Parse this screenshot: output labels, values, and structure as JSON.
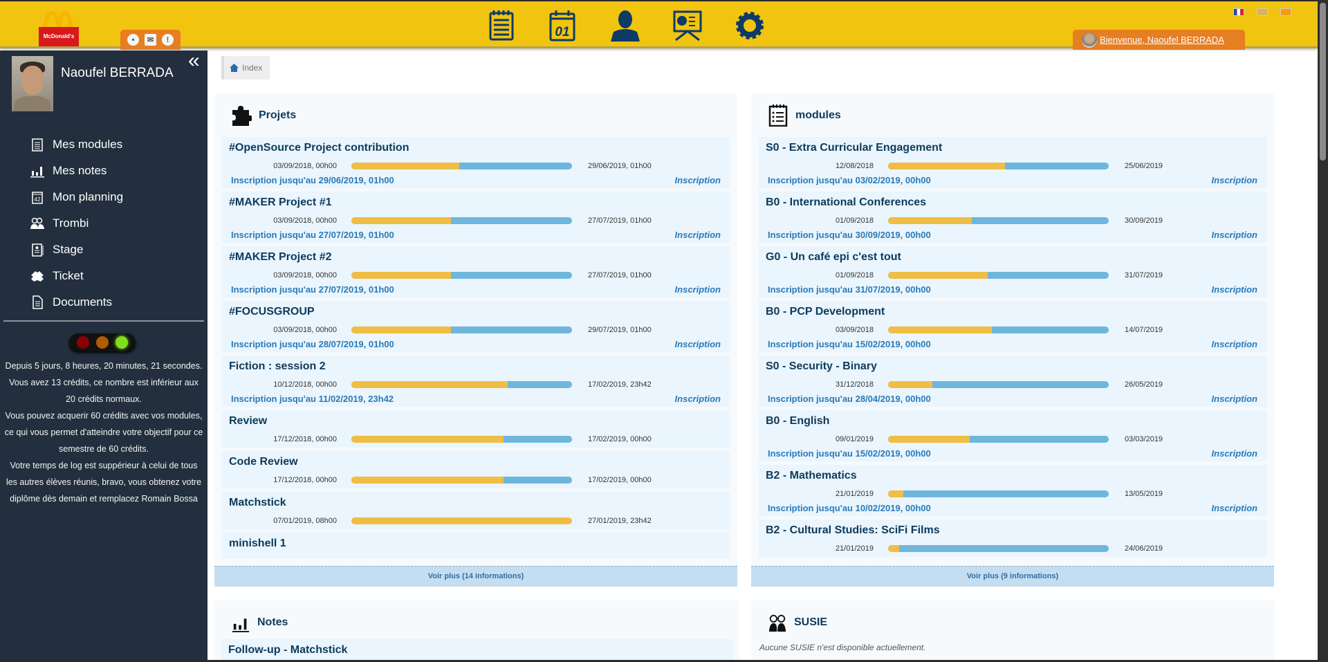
{
  "header": {
    "logo_text": "McDonald's",
    "notifications": [
      {
        "icon": "location-pin-icon"
      },
      {
        "icon": "mail-icon"
      },
      {
        "icon": "alert-icon",
        "glyph": "!"
      }
    ],
    "nav": [
      {
        "icon": "modules-notepad-icon"
      },
      {
        "icon": "calendar-icon",
        "glyph": "01"
      },
      {
        "icon": "user-icon"
      },
      {
        "icon": "presentation-icon"
      },
      {
        "icon": "gear-icon"
      }
    ],
    "flags": [
      {
        "name": "flag-fr"
      },
      {
        "name": "flag-uk"
      },
      {
        "name": "flag-other"
      }
    ],
    "welcome": "Bienvenue, Naoufel BERRADA"
  },
  "sidebar": {
    "user_name": "Naoufel BERRADA",
    "collapse": "«",
    "items": [
      {
        "label": "Mes modules",
        "icon": "notepad-icon"
      },
      {
        "label": "Mes notes",
        "icon": "bar-chart-icon"
      },
      {
        "label": "Mon planning",
        "icon": "calendar-icon"
      },
      {
        "label": "Trombi",
        "icon": "people-icon"
      },
      {
        "label": "Stage",
        "icon": "id-card-icon"
      },
      {
        "label": "Ticket",
        "icon": "bug-icon"
      },
      {
        "label": "Documents",
        "icon": "document-icon"
      }
    ],
    "traffic_light": {
      "active": "green"
    },
    "status_lines": [
      "Depuis 5 jours, 8 heures, 20 minutes, 21 secondes.",
      "Vous avez 13 crédits, ce nombre est inférieur aux 20 crédits normaux.",
      "Vous pouvez acquerir 60 crédits avec vos modules, ce qui vous permet d'atteindre votre objectif pour ce semestre de 60 crédits.",
      "Votre temps de log est suppérieur à celui de tous les autres élèves réunis, bravo, vous obtenez votre diplôme dès demain et remplacez Romain Bossa"
    ]
  },
  "breadcrumb": {
    "label": "Index"
  },
  "colors": {
    "header": "#f1c40f",
    "tab": "#e67e22",
    "sidebar": "#232f3e",
    "bar_elapsed": "#f0bd45",
    "bar_remaining": "#6fb6dc",
    "link": "#2a7ab8"
  },
  "projets": {
    "title": "Projets",
    "more": "Voir plus (14 informations)",
    "items": [
      {
        "title": "#OpenSource Project contribution",
        "start": "03/09/2018, 00h00",
        "end": "29/06/2019, 01h00",
        "progress": 0.49,
        "inscription": "Inscription jusqu'au 29/06/2019, 01h00",
        "link": "Inscription"
      },
      {
        "title": "#MAKER Project #1",
        "start": "03/09/2018, 00h00",
        "end": "27/07/2019, 01h00",
        "progress": 0.45,
        "inscription": "Inscription jusqu'au 27/07/2019, 01h00",
        "link": "Inscription"
      },
      {
        "title": "#MAKER Project #2",
        "start": "03/09/2018, 00h00",
        "end": "27/07/2019, 01h00",
        "progress": 0.45,
        "inscription": "Inscription jusqu'au 27/07/2019, 01h00",
        "link": "Inscription"
      },
      {
        "title": "#FOCUSGROUP",
        "start": "03/09/2018, 00h00",
        "end": "29/07/2019, 01h00",
        "progress": 0.45,
        "inscription": "Inscription jusqu'au 28/07/2019, 01h00",
        "link": "Inscription"
      },
      {
        "title": "Fiction : session 2",
        "start": "10/12/2018, 00h00",
        "end": "17/02/2019, 23h42",
        "progress": 0.71,
        "inscription": "Inscription jusqu'au 11/02/2019, 23h42",
        "link": "Inscription"
      },
      {
        "title": "Review",
        "start": "17/12/2018, 00h00",
        "end": "17/02/2019, 00h00",
        "progress": 0.69
      },
      {
        "title": "Code Review",
        "start": "17/12/2018, 00h00",
        "end": "17/02/2019, 00h00",
        "progress": 0.69
      },
      {
        "title": "Matchstick",
        "start": "07/01/2019, 08h00",
        "end": "27/01/2019, 23h42",
        "progress": 1.0
      },
      {
        "title": "minishell 1"
      }
    ]
  },
  "modules": {
    "title": "modules",
    "more": "Voir plus (9 informations)",
    "items": [
      {
        "title": "S0 - Extra Curricular Engagement",
        "start": "12/08/2018",
        "end": "25/06/2019",
        "progress": 0.53,
        "inscription": "Inscription jusqu'au 03/02/2019, 00h00",
        "link": "Inscription"
      },
      {
        "title": "B0 - International Conferences",
        "start": "01/09/2018",
        "end": "30/09/2019",
        "progress": 0.38,
        "inscription": "Inscription jusqu'au 30/09/2019, 00h00",
        "link": "Inscription"
      },
      {
        "title": "G0 - Un café epi c'est tout",
        "start": "01/09/2018",
        "end": "31/07/2019",
        "progress": 0.45,
        "inscription": "Inscription jusqu'au 31/07/2019, 00h00",
        "link": "Inscription"
      },
      {
        "title": "B0 - PCP Development",
        "start": "03/09/2018",
        "end": "14/07/2019",
        "progress": 0.47,
        "inscription": "Inscription jusqu'au 15/02/2019, 00h00",
        "link": "Inscription"
      },
      {
        "title": "S0 - Security - Binary",
        "start": "31/12/2018",
        "end": "26/05/2019",
        "progress": 0.2,
        "inscription": "Inscription jusqu'au 28/04/2019, 00h00",
        "link": "Inscription"
      },
      {
        "title": "B0 - English",
        "start": "09/01/2019",
        "end": "03/03/2019",
        "progress": 0.37,
        "inscription": "Inscription jusqu'au 15/02/2019, 00h00",
        "link": "Inscription"
      },
      {
        "title": "B2 - Mathematics",
        "start": "21/01/2019",
        "end": "13/05/2019",
        "progress": 0.07,
        "inscription": "Inscription jusqu'au 10/02/2019, 00h00",
        "link": "Inscription"
      },
      {
        "title": "B2 - Cultural Studies: SciFi Films",
        "start": "21/01/2019",
        "end": "24/06/2019",
        "progress": 0.05
      }
    ]
  },
  "notes": {
    "title": "Notes",
    "items": [
      {
        "title": "Follow-up - Matchstick"
      }
    ]
  },
  "susie": {
    "title": "SUSIE",
    "empty": "Aucune SUSIE n'est disponible actuellement."
  }
}
